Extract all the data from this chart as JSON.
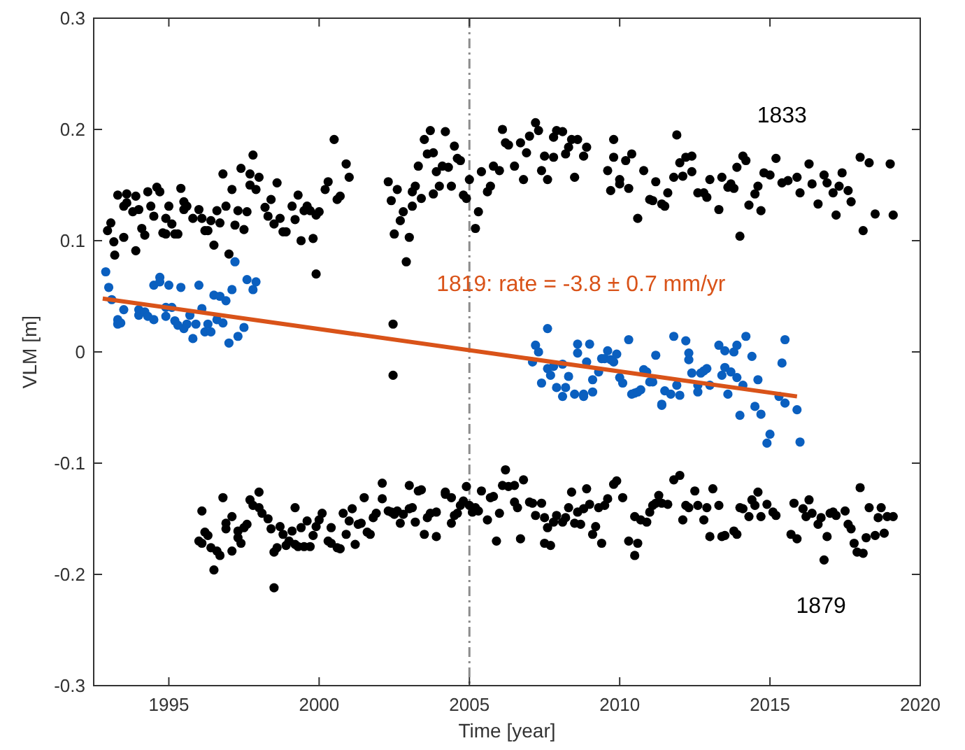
{
  "chart_data": {
    "type": "scatter",
    "xlabel": "Time [year]",
    "ylabel": "VLM [m]",
    "xlim": [
      1992.5,
      2020
    ],
    "ylim": [
      -0.3,
      0.3
    ],
    "xticks": [
      1995,
      2000,
      2005,
      2010,
      2015,
      2020
    ],
    "yticks": [
      -0.3,
      -0.2,
      -0.1,
      0,
      0.1,
      0.2,
      0.3
    ],
    "grid": false,
    "marker": "circle",
    "ref_lines": [
      {
        "axis": "x",
        "value": 2005,
        "color": "#8c8c8c",
        "line_style": "dashed"
      }
    ],
    "series": [
      {
        "name": "1833",
        "color": "#000000",
        "x": [
          1992.96,
          1993.07,
          1993.17,
          1993.2,
          1993.3,
          1993.5,
          1993.5,
          1993.6,
          1993.6,
          1993.8,
          1993.9,
          1993.9,
          1994.0,
          1994.1,
          1994.2,
          1994.3,
          1994.4,
          1994.5,
          1994.6,
          1994.7,
          1994.8,
          1994.9,
          1994.9,
          1995.0,
          1995.1,
          1995.2,
          1995.3,
          1995.4,
          1995.5,
          1995.5,
          1995.6,
          1995.8,
          1996.0,
          1996.1,
          1996.2,
          1996.3,
          1996.4,
          1996.5,
          1996.6,
          1996.7,
          1996.8,
          1996.9,
          1997.0,
          1997.1,
          1997.2,
          1997.3,
          1997.4,
          1997.5,
          1997.6,
          1997.7,
          1997.7,
          1997.8,
          1997.9,
          1998.0,
          1998.2,
          1998.3,
          1998.4,
          1998.5,
          1998.6,
          1998.7,
          1998.8,
          1998.9,
          1999.1,
          1999.2,
          1999.3,
          1999.4,
          1999.5,
          1999.6,
          1999.7,
          1999.8,
          1999.9,
          1999.9,
          2000.0,
          2000.2,
          2000.3,
          2000.5,
          2000.6,
          2000.7,
          2000.9,
          2001.0,
          2002.3,
          2002.4,
          2002.46,
          2002.46,
          2002.5,
          2002.6,
          2002.7,
          2002.8,
          2002.9,
          2003.0,
          2003.1,
          2003.1,
          2003.2,
          2003.3,
          2003.4,
          2003.5,
          2003.6,
          2003.7,
          2003.8,
          2003.8,
          2003.9,
          2004.0,
          2004.1,
          2004.2,
          2004.3,
          2004.4,
          2004.5,
          2004.6,
          2004.7,
          2004.8,
          2004.9,
          2005.0,
          2005.2,
          2005.3,
          2005.4,
          2005.6,
          2005.7,
          2005.8,
          2006.0,
          2006.1,
          2006.2,
          2006.3,
          2006.5,
          2006.7,
          2006.8,
          2006.9,
          2007.0,
          2007.2,
          2007.3,
          2007.4,
          2007.5,
          2007.6,
          2007.8,
          2007.8,
          2007.9,
          2008.1,
          2008.2,
          2008.3,
          2008.4,
          2008.5,
          2008.6,
          2008.8,
          2008.9,
          2009.6,
          2009.7,
          2009.8,
          2009.8,
          2010.0,
          2010.0,
          2010.2,
          2010.3,
          2010.4,
          2010.6,
          2010.8,
          2011.0,
          2011.1,
          2011.2,
          2011.4,
          2011.5,
          2011.6,
          2011.8,
          2011.9,
          2012.0,
          2012.1,
          2012.2,
          2012.4,
          2012.4,
          2012.6,
          2012.8,
          2012.9,
          2013.0,
          2013.3,
          2013.4,
          2013.6,
          2013.7,
          2013.8,
          2013.9,
          2014.0,
          2014.1,
          2014.2,
          2014.3,
          2014.5,
          2014.6,
          2014.7,
          2014.8,
          2015.0,
          2015.2,
          2015.4,
          2015.6,
          2015.9,
          2016.0,
          2016.3,
          2016.4,
          2016.6,
          2016.8,
          2016.9,
          2017.1,
          2017.2,
          2017.3,
          2017.4,
          2017.6,
          2017.7,
          2018.0,
          2018.1,
          2018.3,
          2018.5,
          2019.0,
          2019.1
        ],
        "values": [
          0.109,
          0.116,
          0.099,
          0.087,
          0.141,
          0.131,
          0.103,
          0.142,
          0.134,
          0.126,
          0.091,
          0.14,
          0.128,
          0.111,
          0.105,
          0.144,
          0.131,
          0.122,
          0.148,
          0.144,
          0.107,
          0.106,
          0.12,
          0.131,
          0.115,
          0.106,
          0.106,
          0.147,
          0.128,
          0.135,
          0.131,
          0.12,
          0.128,
          0.12,
          0.109,
          0.109,
          0.118,
          0.096,
          0.127,
          0.116,
          0.16,
          0.131,
          0.088,
          0.146,
          0.114,
          0.127,
          0.165,
          0.11,
          0.126,
          0.15,
          0.16,
          0.177,
          0.146,
          0.157,
          0.13,
          0.122,
          0.137,
          0.115,
          0.152,
          0.12,
          0.108,
          0.108,
          0.131,
          0.119,
          0.141,
          0.1,
          0.127,
          0.131,
          0.127,
          0.102,
          0.123,
          0.07,
          0.126,
          0.146,
          0.153,
          0.191,
          0.137,
          0.14,
          0.169,
          0.157,
          0.153,
          0.136,
          0.025,
          -0.021,
          0.106,
          0.146,
          0.118,
          0.126,
          0.081,
          0.103,
          0.131,
          0.144,
          0.149,
          0.167,
          0.138,
          0.191,
          0.178,
          0.199,
          0.142,
          0.179,
          0.162,
          0.149,
          0.167,
          0.198,
          0.166,
          0.149,
          0.185,
          0.174,
          0.172,
          0.141,
          0.138,
          0.155,
          0.111,
          0.126,
          0.162,
          0.144,
          0.149,
          0.167,
          0.163,
          0.2,
          0.188,
          0.186,
          0.167,
          0.188,
          0.155,
          0.179,
          0.194,
          0.206,
          0.199,
          0.163,
          0.176,
          0.155,
          0.193,
          0.175,
          0.199,
          0.198,
          0.178,
          0.184,
          0.191,
          0.157,
          0.191,
          0.176,
          0.184,
          0.163,
          0.145,
          0.191,
          0.175,
          0.155,
          0.151,
          0.172,
          0.147,
          0.178,
          0.12,
          0.163,
          0.137,
          0.136,
          0.153,
          0.133,
          0.131,
          0.143,
          0.157,
          0.195,
          0.17,
          0.158,
          0.175,
          0.176,
          0.162,
          0.143,
          0.143,
          0.139,
          0.155,
          0.128,
          0.157,
          0.148,
          0.151,
          0.147,
          0.166,
          0.104,
          0.176,
          0.172,
          0.132,
          0.142,
          0.149,
          0.127,
          0.161,
          0.159,
          0.174,
          0.152,
          0.154,
          0.157,
          0.143,
          0.169,
          0.151,
          0.133,
          0.159,
          0.152,
          0.143,
          0.123,
          0.149,
          0.161,
          0.145,
          0.135,
          0.175,
          0.109,
          0.17,
          0.124,
          0.169,
          0.123
        ]
      },
      {
        "color": "#0a5fbf",
        "x": [
          1992.9,
          1993.0,
          1993.1,
          1993.3,
          1993.3,
          1993.4,
          1993.5,
          1994.0,
          1994.0,
          1994.2,
          1994.3,
          1994.5,
          1994.5,
          1994.7,
          1994.7,
          1994.9,
          1994.9,
          1995.0,
          1995.1,
          1995.2,
          1995.3,
          1995.4,
          1995.5,
          1995.6,
          1995.7,
          1995.8,
          1995.9,
          1996.0,
          1996.1,
          1996.2,
          1996.3,
          1996.4,
          1996.5,
          1996.6,
          1996.7,
          1996.8,
          1996.9,
          1997.0,
          1997.1,
          1997.2,
          1997.3,
          1997.5,
          1997.6,
          1997.8,
          1997.9,
          2007.1,
          2007.2,
          2007.3,
          2007.4,
          2007.6,
          2007.6,
          2007.7,
          2007.8,
          2007.9,
          2008.1,
          2008.1,
          2008.2,
          2008.3,
          2008.5,
          2008.6,
          2008.6,
          2008.8,
          2008.8,
          2008.9,
          2009.0,
          2009.1,
          2009.1,
          2009.3,
          2009.4,
          2009.5,
          2009.6,
          2009.7,
          2009.8,
          2009.9,
          2010.0,
          2010.1,
          2010.3,
          2010.4,
          2010.5,
          2010.6,
          2010.7,
          2010.8,
          2010.9,
          2011.0,
          2011.1,
          2011.2,
          2011.4,
          2011.4,
          2011.5,
          2011.7,
          2011.8,
          2011.9,
          2012.0,
          2012.2,
          2012.3,
          2012.3,
          2012.4,
          2012.6,
          2012.6,
          2012.7,
          2012.8,
          2012.9,
          2013.0,
          2013.3,
          2013.4,
          2013.5,
          2013.5,
          2013.6,
          2013.7,
          2013.8,
          2013.9,
          2013.9,
          2014.0,
          2014.1,
          2014.2,
          2014.4,
          2014.5,
          2014.6,
          2014.7,
          2014.9,
          2015.0,
          2015.3,
          2015.4,
          2015.5,
          2015.5,
          2015.9,
          2016.0
        ],
        "values": [
          0.072,
          0.058,
          0.047,
          0.029,
          0.025,
          0.026,
          0.038,
          0.038,
          0.033,
          0.036,
          0.032,
          0.029,
          0.06,
          0.067,
          0.063,
          0.04,
          0.032,
          0.06,
          0.04,
          0.028,
          0.024,
          0.058,
          0.021,
          0.025,
          0.033,
          0.012,
          0.025,
          0.06,
          0.039,
          0.018,
          0.025,
          0.018,
          0.051,
          0.029,
          0.05,
          0.026,
          0.046,
          0.008,
          0.056,
          0.081,
          0.014,
          0.022,
          0.065,
          0.056,
          0.063,
          -0.009,
          0.006,
          0.0,
          -0.028,
          0.021,
          -0.015,
          -0.021,
          -0.013,
          -0.032,
          -0.04,
          -0.011,
          -0.032,
          -0.022,
          -0.038,
          -0.001,
          0.007,
          -0.038,
          -0.04,
          -0.009,
          0.007,
          -0.036,
          -0.025,
          -0.018,
          -0.006,
          -0.006,
          0.001,
          -0.007,
          -0.009,
          -0.002,
          -0.023,
          -0.028,
          0.011,
          -0.038,
          -0.037,
          -0.036,
          -0.034,
          -0.016,
          -0.018,
          -0.027,
          -0.027,
          -0.003,
          -0.048,
          -0.047,
          -0.035,
          -0.038,
          0.014,
          -0.03,
          -0.039,
          0.01,
          -0.007,
          -0.001,
          -0.019,
          -0.03,
          -0.036,
          -0.019,
          -0.017,
          -0.015,
          -0.03,
          0.006,
          -0.021,
          0.001,
          -0.014,
          -0.038,
          -0.018,
          0.0,
          0.006,
          -0.023,
          -0.057,
          -0.03,
          0.014,
          -0.004,
          -0.049,
          -0.025,
          -0.056,
          -0.082,
          -0.074,
          -0.04,
          -0.01,
          -0.046,
          0.011,
          -0.052,
          -0.081
        ]
      },
      {
        "name": "1879",
        "color": "#000000",
        "x": [
          1996.0,
          1996.1,
          1996.1,
          1996.2,
          1996.3,
          1996.4,
          1996.5,
          1996.6,
          1996.7,
          1996.8,
          1996.9,
          1996.9,
          1997.1,
          1997.1,
          1997.3,
          1997.3,
          1997.4,
          1997.5,
          1997.6,
          1997.7,
          1997.8,
          1998.0,
          1998.0,
          1998.1,
          1998.3,
          1998.4,
          1998.5,
          1998.5,
          1998.6,
          1998.7,
          1998.8,
          1998.9,
          1999.0,
          1999.1,
          1999.2,
          1999.2,
          1999.3,
          1999.4,
          1999.5,
          1999.6,
          1999.7,
          1999.8,
          1999.9,
          2000.0,
          2000.1,
          2000.3,
          2000.4,
          2000.4,
          2000.6,
          2000.7,
          2000.8,
          2000.9,
          2001.0,
          2001.1,
          2001.2,
          2001.3,
          2001.4,
          2001.5,
          2001.6,
          2001.7,
          2001.8,
          2001.9,
          2002.1,
          2002.1,
          2002.3,
          2002.4,
          2002.5,
          2002.6,
          2002.7,
          2002.8,
          2003.0,
          2003.0,
          2003.1,
          2003.2,
          2003.3,
          2003.4,
          2003.5,
          2003.6,
          2003.7,
          2003.9,
          2003.9,
          2004.2,
          2004.2,
          2004.4,
          2004.4,
          2004.5,
          2004.6,
          2004.7,
          2004.8,
          2004.9,
          2005.0,
          2005.1,
          2005.2,
          2005.3,
          2005.4,
          2005.6,
          2005.7,
          2005.8,
          2005.9,
          2006.0,
          2006.1,
          2006.2,
          2006.3,
          2006.5,
          2006.5,
          2006.6,
          2006.7,
          2006.8,
          2007.0,
          2007.1,
          2007.2,
          2007.4,
          2007.5,
          2007.5,
          2007.6,
          2007.7,
          2007.8,
          2007.9,
          2008.1,
          2008.2,
          2008.3,
          2008.4,
          2008.5,
          2008.6,
          2008.7,
          2008.8,
          2008.9,
          2009.0,
          2009.1,
          2009.2,
          2009.3,
          2009.4,
          2009.5,
          2009.6,
          2009.8,
          2009.9,
          2010.1,
          2010.3,
          2010.5,
          2010.5,
          2010.6,
          2010.7,
          2010.9,
          2011.0,
          2011.1,
          2011.2,
          2011.3,
          2011.4,
          2011.6,
          2011.8,
          2012.0,
          2012.1,
          2012.2,
          2012.3,
          2012.5,
          2012.6,
          2012.8,
          2012.9,
          2013.0,
          2013.1,
          2013.3,
          2013.4,
          2013.5,
          2013.8,
          2013.9,
          2014.0,
          2014.1,
          2014.3,
          2014.4,
          2014.5,
          2014.6,
          2014.7,
          2014.9,
          2015.1,
          2015.2,
          2015.7,
          2015.8,
          2015.9,
          2016.1,
          2016.2,
          2016.3,
          2016.4,
          2016.6,
          2016.7,
          2016.8,
          2016.9,
          2017.0,
          2017.1,
          2017.2,
          2017.5,
          2017.6,
          2017.7,
          2017.8,
          2017.9,
          2018.0,
          2018.1,
          2018.2,
          2018.3,
          2018.5,
          2018.6,
          2018.7,
          2018.8,
          2018.9,
          2019.1
        ],
        "values": [
          -0.17,
          -0.172,
          -0.143,
          -0.162,
          -0.165,
          -0.176,
          -0.196,
          -0.179,
          -0.183,
          -0.131,
          -0.159,
          -0.154,
          -0.179,
          -0.148,
          -0.167,
          -0.161,
          -0.172,
          -0.158,
          -0.155,
          -0.133,
          -0.138,
          -0.126,
          -0.14,
          -0.145,
          -0.15,
          -0.159,
          -0.18,
          -0.212,
          -0.176,
          -0.157,
          -0.164,
          -0.174,
          -0.17,
          -0.161,
          -0.173,
          -0.14,
          -0.175,
          -0.158,
          -0.175,
          -0.152,
          -0.175,
          -0.165,
          -0.157,
          -0.151,
          -0.145,
          -0.17,
          -0.172,
          -0.158,
          -0.176,
          -0.177,
          -0.145,
          -0.164,
          -0.152,
          -0.141,
          -0.173,
          -0.155,
          -0.154,
          -0.131,
          -0.162,
          -0.164,
          -0.149,
          -0.145,
          -0.118,
          -0.132,
          -0.143,
          -0.144,
          -0.146,
          -0.143,
          -0.154,
          -0.146,
          -0.141,
          -0.12,
          -0.14,
          -0.153,
          -0.125,
          -0.124,
          -0.164,
          -0.149,
          -0.145,
          -0.144,
          -0.166,
          -0.126,
          -0.128,
          -0.131,
          -0.154,
          -0.147,
          -0.145,
          -0.138,
          -0.134,
          -0.121,
          -0.138,
          -0.144,
          -0.14,
          -0.143,
          -0.125,
          -0.151,
          -0.131,
          -0.13,
          -0.17,
          -0.145,
          -0.12,
          -0.106,
          -0.121,
          -0.12,
          -0.135,
          -0.14,
          -0.168,
          -0.115,
          -0.135,
          -0.136,
          -0.147,
          -0.136,
          -0.149,
          -0.172,
          -0.158,
          -0.174,
          -0.153,
          -0.147,
          -0.153,
          -0.149,
          -0.14,
          -0.126,
          -0.154,
          -0.144,
          -0.155,
          -0.141,
          -0.123,
          -0.137,
          -0.164,
          -0.157,
          -0.14,
          -0.172,
          -0.138,
          -0.132,
          -0.119,
          -0.116,
          -0.131,
          -0.17,
          -0.148,
          -0.183,
          -0.172,
          -0.151,
          -0.153,
          -0.144,
          -0.138,
          -0.136,
          -0.129,
          -0.136,
          -0.137,
          -0.115,
          -0.111,
          -0.151,
          -0.138,
          -0.14,
          -0.125,
          -0.138,
          -0.151,
          -0.14,
          -0.166,
          -0.123,
          -0.138,
          -0.166,
          -0.165,
          -0.161,
          -0.164,
          -0.14,
          -0.141,
          -0.148,
          -0.133,
          -0.138,
          -0.126,
          -0.148,
          -0.137,
          -0.144,
          -0.147,
          -0.164,
          -0.136,
          -0.168,
          -0.141,
          -0.148,
          -0.133,
          -0.145,
          -0.155,
          -0.149,
          -0.187,
          -0.166,
          -0.145,
          -0.144,
          -0.147,
          -0.143,
          -0.155,
          -0.159,
          -0.172,
          -0.18,
          -0.122,
          -0.181,
          -0.167,
          -0.14,
          -0.165,
          -0.149,
          -0.14,
          -0.163,
          -0.148,
          -0.148
        ]
      },
      {
        "name": "1819: rate = -3.8 ± 0.7 mm/yr",
        "type": "line",
        "marker": "none",
        "color": "#d95319",
        "x": [
          1992.8,
          2015.9
        ],
        "values": [
          0.048,
          -0.04
        ]
      }
    ]
  }
}
